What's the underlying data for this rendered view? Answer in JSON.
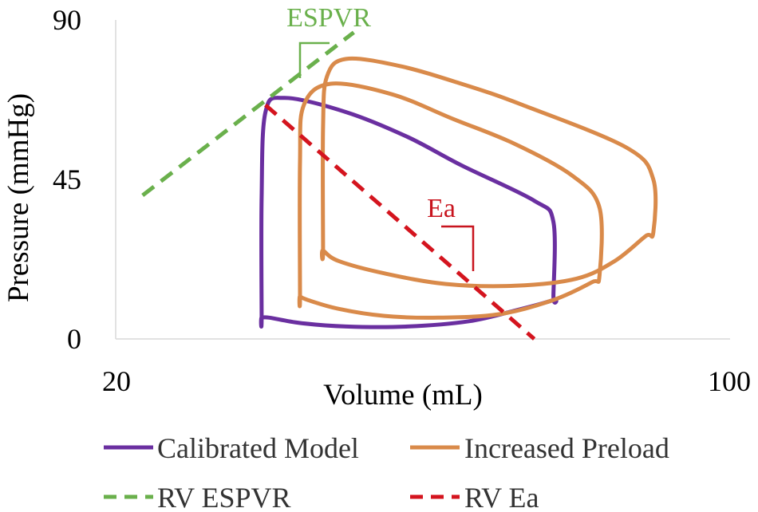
{
  "chart_data": {
    "type": "line",
    "title": "",
    "xlabel": "Volume (mL)",
    "ylabel": "Pressure (mmHg)",
    "xlim": [
      20,
      100
    ],
    "ylim": [
      0,
      90
    ],
    "x_ticks": [
      "20",
      "100"
    ],
    "y_ticks": [
      "0",
      "45",
      "90"
    ],
    "grid": false,
    "legend_position": "bottom",
    "annotations": [
      {
        "text": "ESPVR",
        "color": "#6ab04c"
      },
      {
        "text": "Ea",
        "color": "#c8141e"
      }
    ],
    "series": [
      {
        "name": "Calibrated Model",
        "color": "#6a2fa0",
        "style": "solid",
        "x": [
          39,
          39,
          39.5,
          42,
          50,
          58,
          65,
          74.5,
          77,
          77,
          77,
          72,
          66,
          58,
          50,
          44,
          40,
          39
        ],
        "y": [
          6,
          40,
          64,
          68,
          64,
          57,
          49,
          39,
          33,
          12,
          11,
          8,
          5,
          3.5,
          3.5,
          4.5,
          6,
          6
        ],
        "closed": true
      },
      {
        "name": "Increased Preload",
        "color": "#d98a4a",
        "style": "solid",
        "x": [
          44,
          44,
          44.5,
          48,
          56,
          64,
          72,
          79.5,
          83,
          83,
          82,
          77,
          70,
          62,
          55,
          49,
          45,
          44
        ],
        "y": [
          12,
          50,
          66,
          72,
          69,
          62,
          55,
          46,
          37,
          18,
          16,
          11,
          7,
          6,
          6.5,
          8.5,
          11,
          12
        ],
        "closed": true
      },
      {
        "name": "Increased Preload",
        "color": "#d98a4a",
        "style": "solid",
        "x": [
          47,
          47,
          47.5,
          50,
          57,
          65,
          73,
          86.5,
          90,
          90,
          89,
          85,
          80,
          72,
          63,
          55,
          49,
          47
        ],
        "y": [
          25,
          60,
          74,
          79,
          77,
          72,
          66,
          54,
          45,
          30,
          29,
          22,
          17,
          15,
          15.5,
          18.5,
          22,
          25
        ],
        "closed": true
      },
      {
        "name": "RV ESPVR",
        "color": "#6ab04c",
        "style": "dashed",
        "x": [
          23.5,
          51
        ],
        "y": [
          40.5,
          86.5
        ]
      },
      {
        "name": "RV Ea",
        "color": "#d4141e",
        "style": "dashed",
        "x": [
          39.5,
          74.5
        ],
        "y": [
          66,
          0
        ]
      }
    ],
    "legend": [
      {
        "name": "Calibrated Model",
        "color": "#6a2fa0",
        "style": "solid"
      },
      {
        "name": "Increased Preload",
        "color": "#d98a4a",
        "style": "solid"
      },
      {
        "name": "RV ESPVR",
        "color": "#6ab04c",
        "style": "dashed"
      },
      {
        "name": "RV Ea",
        "color": "#d4141e",
        "style": "dashed"
      }
    ]
  }
}
